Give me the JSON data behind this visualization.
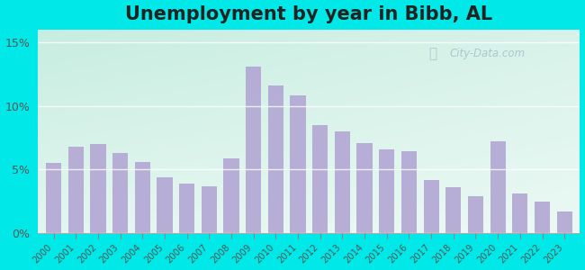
{
  "title": "Unemployment by year in Bibb, AL",
  "years": [
    2000,
    2001,
    2002,
    2003,
    2004,
    2005,
    2006,
    2007,
    2008,
    2009,
    2010,
    2011,
    2012,
    2013,
    2014,
    2015,
    2016,
    2017,
    2018,
    2019,
    2020,
    2021,
    2022,
    2023
  ],
  "values": [
    5.5,
    6.8,
    7.0,
    6.3,
    5.6,
    4.4,
    3.9,
    3.7,
    5.9,
    13.1,
    11.6,
    10.8,
    8.5,
    8.0,
    7.1,
    6.6,
    6.4,
    4.2,
    3.6,
    2.9,
    7.2,
    3.1,
    2.5,
    1.7
  ],
  "bar_color": "#b3a8d4",
  "bg_outer": "#00e8e8",
  "bg_grad_topleft": "#c8ede0",
  "bg_grad_bottomright": "#f0f5ee",
  "yticks": [
    0,
    5,
    10,
    15
  ],
  "ylim": [
    0,
    16
  ],
  "title_fontsize": 15,
  "watermark": "City-Data.com"
}
